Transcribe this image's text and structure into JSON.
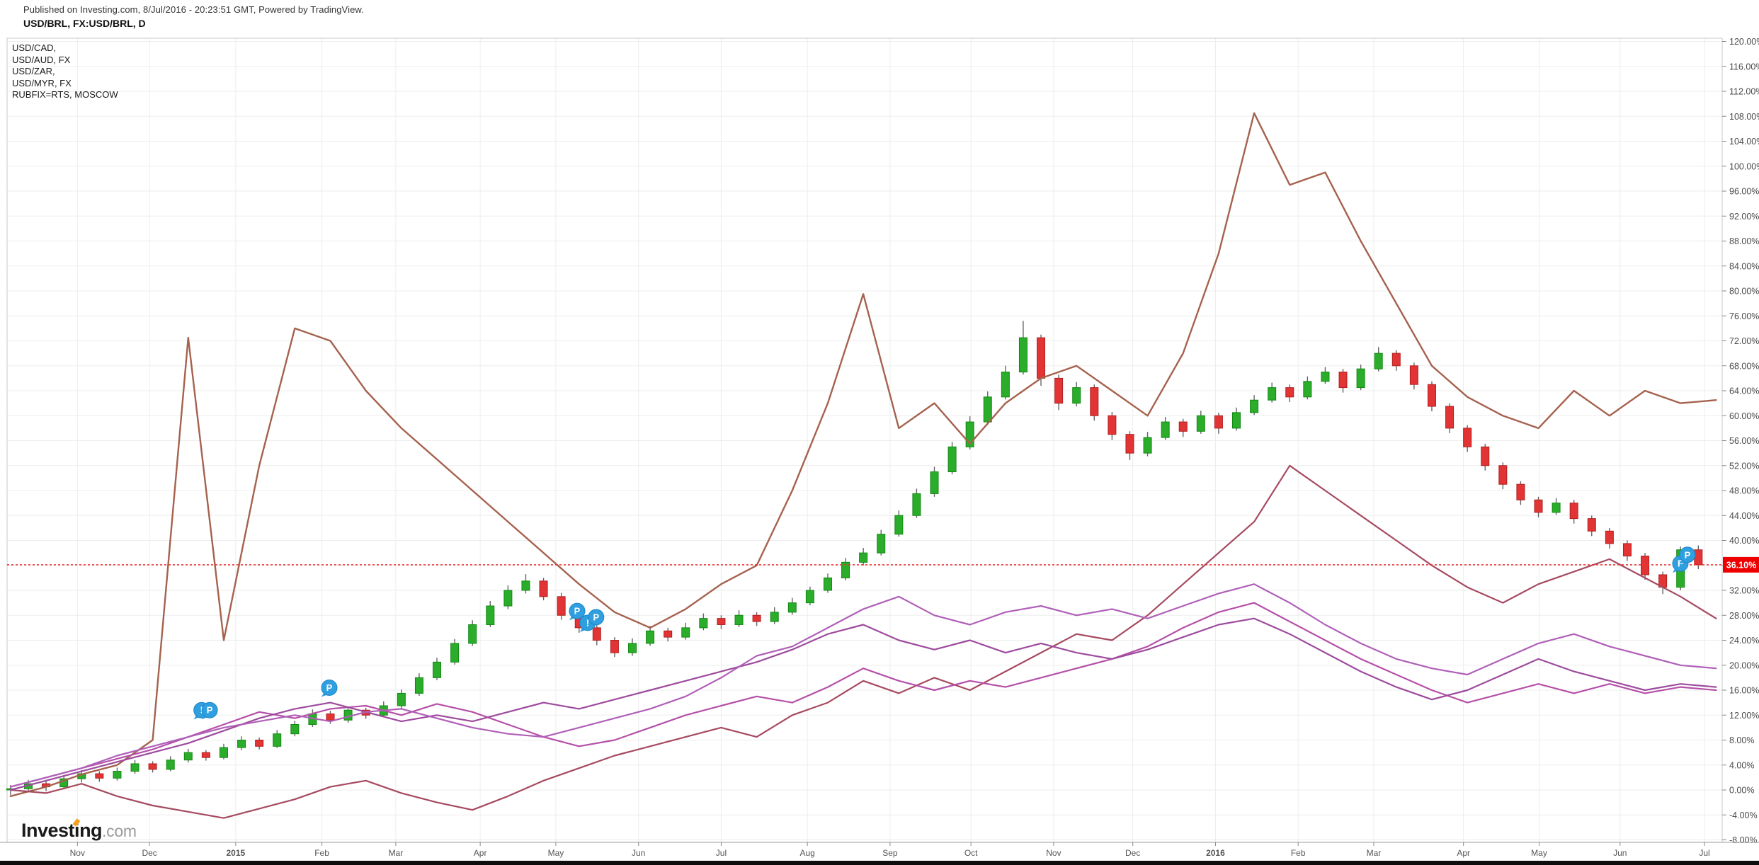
{
  "header": {
    "published_line": "Published on Investing.com, 8/Jul/2016 - 20:23:51 GMT, Powered by TradingView.",
    "symbol_line": "USD/BRL, FX:USD/BRL, D"
  },
  "legend": {
    "lines": [
      "USD/CAD,",
      "USD/AUD, FX",
      "USD/ZAR,",
      "USD/MYR, FX",
      "RUBFIX=RTS, MOSCOW"
    ]
  },
  "logo": {
    "brand_a": "Invest",
    "brand_i": "i",
    "brand_b": "ng",
    "tld": ".com"
  },
  "chart_data": {
    "type": "candlestick+lines",
    "title": "USD/BRL, FX:USD/BRL, D",
    "grid": true,
    "y_axis": {
      "unit": "%",
      "max": 120,
      "min": -8,
      "tick_step": 4,
      "tick_labels": [
        "120.00%",
        "116.00%",
        "112.00%",
        "108.00%",
        "104.00%",
        "100.00%",
        "96.00%",
        "92.00%",
        "88.00%",
        "84.00%",
        "80.00%",
        "76.00%",
        "72.00%",
        "68.00%",
        "64.00%",
        "60.00%",
        "56.00%",
        "52.00%",
        "48.00%",
        "44.00%",
        "40.00%",
        "36.00%",
        "32.00%",
        "28.00%",
        "24.00%",
        "20.00%",
        "16.00%",
        "12.00%",
        "8.00%",
        "4.00%",
        "0.00%",
        "-4.00%",
        "-8.00%"
      ]
    },
    "x_axis": {
      "ticks": [
        {
          "label": "Nov",
          "f": 0.044,
          "bold": false
        },
        {
          "label": "Dec",
          "f": 0.085,
          "bold": false
        },
        {
          "label": "2015",
          "f": 0.134,
          "bold": true
        },
        {
          "label": "Feb",
          "f": 0.183,
          "bold": false
        },
        {
          "label": "Mar",
          "f": 0.225,
          "bold": false
        },
        {
          "label": "Apr",
          "f": 0.273,
          "bold": false
        },
        {
          "label": "May",
          "f": 0.316,
          "bold": false
        },
        {
          "label": "Jun",
          "f": 0.363,
          "bold": false
        },
        {
          "label": "Jul",
          "f": 0.41,
          "bold": false
        },
        {
          "label": "Aug",
          "f": 0.459,
          "bold": false
        },
        {
          "label": "Sep",
          "f": 0.506,
          "bold": false
        },
        {
          "label": "Oct",
          "f": 0.552,
          "bold": false
        },
        {
          "label": "Nov",
          "f": 0.599,
          "bold": false
        },
        {
          "label": "Dec",
          "f": 0.644,
          "bold": false
        },
        {
          "label": "2016",
          "f": 0.691,
          "bold": true
        },
        {
          "label": "Feb",
          "f": 0.738,
          "bold": false
        },
        {
          "label": "Mar",
          "f": 0.781,
          "bold": false
        },
        {
          "label": "Apr",
          "f": 0.832,
          "bold": false
        },
        {
          "label": "May",
          "f": 0.875,
          "bold": false
        },
        {
          "label": "Jun",
          "f": 0.921,
          "bold": false
        },
        {
          "label": "Jul",
          "f": 0.969,
          "bold": false
        }
      ]
    },
    "last_price": {
      "value": 36.1,
      "label": "36.10%",
      "line_color": "#f23030",
      "box_color": "#ef0000",
      "text_color": "#ffffff"
    },
    "candles": {
      "name": "USD/BRL",
      "up_color": "#2bad2b",
      "up_border": "#118a11",
      "down_color": "#e23434",
      "down_border": "#b02020",
      "wick_color": "#666666",
      "f0": 0.006,
      "f_step": 0.0101,
      "ohlc": [
        [
          0,
          0.8,
          -0.8,
          0.2
        ],
        [
          0.2,
          1.6,
          -0.3,
          1.0
        ],
        [
          1.0,
          1.5,
          -0.2,
          0.5
        ],
        [
          0.5,
          2.4,
          0.1,
          1.8
        ],
        [
          1.8,
          3.2,
          1.2,
          2.6
        ],
        [
          2.6,
          3.0,
          1.3,
          1.9
        ],
        [
          1.9,
          3.6,
          1.5,
          3.0
        ],
        [
          3.0,
          4.8,
          2.6,
          4.2
        ],
        [
          4.2,
          4.6,
          2.8,
          3.3
        ],
        [
          3.3,
          5.4,
          3.0,
          4.8
        ],
        [
          4.8,
          6.6,
          4.4,
          6.0
        ],
        [
          6.0,
          6.4,
          4.7,
          5.2
        ],
        [
          5.2,
          7.4,
          4.9,
          6.8
        ],
        [
          6.8,
          8.6,
          6.4,
          8.0
        ],
        [
          8.0,
          8.4,
          6.5,
          7.0
        ],
        [
          7.0,
          9.6,
          6.7,
          9.0
        ],
        [
          9.0,
          11.1,
          8.6,
          10.5
        ],
        [
          10.5,
          12.9,
          10.1,
          12.2
        ],
        [
          12.2,
          12.7,
          10.6,
          11.2
        ],
        [
          11.2,
          13.4,
          10.8,
          12.8
        ],
        [
          12.8,
          13.2,
          11.4,
          12.0
        ],
        [
          12.0,
          14.2,
          11.7,
          13.5
        ],
        [
          13.5,
          16.1,
          13.1,
          15.5
        ],
        [
          15.5,
          18.7,
          15.1,
          18.0
        ],
        [
          18.0,
          21.2,
          17.6,
          20.5
        ],
        [
          20.5,
          24.2,
          20.1,
          23.5
        ],
        [
          23.5,
          27.2,
          23.1,
          26.5
        ],
        [
          26.5,
          30.3,
          26.1,
          29.5
        ],
        [
          29.5,
          32.8,
          29.0,
          32.0
        ],
        [
          32.0,
          34.6,
          31.5,
          33.5
        ],
        [
          33.5,
          34.0,
          30.4,
          31.0
        ],
        [
          31.0,
          31.6,
          27.3,
          28.0
        ],
        [
          28.0,
          28.6,
          25.2,
          26.0
        ],
        [
          26.0,
          26.6,
          23.2,
          24.0
        ],
        [
          24.0,
          24.5,
          21.3,
          22.0
        ],
        [
          22.0,
          24.3,
          21.5,
          23.5
        ],
        [
          23.5,
          26.3,
          23.1,
          25.5
        ],
        [
          25.5,
          26.0,
          23.8,
          24.5
        ],
        [
          24.5,
          26.8,
          24.1,
          26.0
        ],
        [
          26.0,
          28.3,
          25.6,
          27.5
        ],
        [
          27.5,
          28.0,
          25.8,
          26.5
        ],
        [
          26.5,
          28.8,
          26.1,
          28.0
        ],
        [
          28.0,
          28.5,
          26.3,
          27.0
        ],
        [
          27.0,
          29.3,
          26.6,
          28.5
        ],
        [
          28.5,
          30.8,
          28.1,
          30.0
        ],
        [
          30.0,
          32.6,
          29.6,
          32.0
        ],
        [
          32.0,
          34.7,
          31.6,
          34.0
        ],
        [
          34.0,
          37.2,
          33.6,
          36.5
        ],
        [
          36.5,
          38.8,
          36.0,
          38.0
        ],
        [
          38.0,
          41.7,
          37.6,
          41.0
        ],
        [
          41.0,
          44.8,
          40.6,
          44.0
        ],
        [
          44.0,
          48.3,
          43.6,
          47.5
        ],
        [
          47.5,
          51.8,
          47.0,
          51.0
        ],
        [
          51.0,
          55.8,
          50.6,
          55.0
        ],
        [
          55.0,
          59.9,
          54.6,
          59.0
        ],
        [
          59.0,
          63.9,
          58.5,
          63.0
        ],
        [
          63.0,
          68.0,
          62.6,
          67.0
        ],
        [
          67.0,
          75.2,
          66.6,
          72.5
        ],
        [
          72.5,
          73.0,
          64.8,
          66.0
        ],
        [
          66.0,
          66.6,
          60.9,
          62.0
        ],
        [
          62.0,
          65.4,
          61.5,
          64.5
        ],
        [
          64.5,
          65.0,
          59.2,
          60.0
        ],
        [
          60.0,
          60.6,
          56.1,
          57.0
        ],
        [
          57.0,
          57.5,
          52.9,
          54.0
        ],
        [
          54.0,
          57.4,
          53.5,
          56.5
        ],
        [
          56.5,
          59.8,
          56.1,
          59.0
        ],
        [
          59.0,
          59.5,
          56.6,
          57.5
        ],
        [
          57.5,
          60.8,
          57.1,
          60.0
        ],
        [
          60.0,
          60.5,
          57.1,
          58.0
        ],
        [
          58.0,
          61.3,
          57.6,
          60.5
        ],
        [
          60.5,
          63.3,
          60.1,
          62.5
        ],
        [
          62.5,
          65.3,
          62.1,
          64.5
        ],
        [
          64.5,
          65.0,
          62.2,
          63.0
        ],
        [
          63.0,
          66.3,
          62.6,
          65.5
        ],
        [
          65.5,
          67.8,
          65.1,
          67.0
        ],
        [
          67.0,
          67.5,
          63.7,
          64.5
        ],
        [
          64.5,
          68.2,
          64.1,
          67.5
        ],
        [
          67.5,
          71.0,
          67.1,
          70.0
        ],
        [
          70.0,
          70.5,
          67.2,
          68.0
        ],
        [
          68.0,
          68.5,
          64.2,
          65.0
        ],
        [
          65.0,
          65.5,
          60.7,
          61.5
        ],
        [
          61.5,
          62.0,
          57.2,
          58.0
        ],
        [
          58.0,
          58.5,
          54.2,
          55.0
        ],
        [
          55.0,
          55.5,
          51.2,
          52.0
        ],
        [
          52.0,
          52.5,
          48.2,
          49.0
        ],
        [
          49.0,
          49.5,
          45.7,
          46.5
        ],
        [
          46.5,
          47.0,
          43.7,
          44.5
        ],
        [
          44.5,
          46.8,
          44.1,
          46.0
        ],
        [
          46.0,
          46.5,
          42.7,
          43.5
        ],
        [
          43.5,
          44.0,
          40.7,
          41.5
        ],
        [
          41.5,
          42.0,
          38.7,
          39.5
        ],
        [
          39.5,
          40.0,
          36.7,
          37.5
        ],
        [
          37.5,
          38.0,
          33.7,
          34.5
        ],
        [
          34.5,
          35.0,
          31.4,
          32.5
        ],
        [
          32.5,
          39.0,
          32.0,
          38.5
        ],
        [
          38.5,
          39.2,
          35.4,
          36.1
        ]
      ]
    },
    "lines": [
      {
        "name": "RUBFIX=RTS",
        "color": "#a5624e",
        "width": 2.4,
        "f0": 0.006,
        "f_step": 0.0202,
        "values": [
          -1,
          0.5,
          2.5,
          4,
          8,
          72.5,
          24,
          52,
          74,
          72,
          64,
          58,
          53,
          48,
          43,
          38,
          33,
          28.5,
          26,
          29,
          33,
          36,
          48,
          62,
          79.5,
          58,
          62,
          55.5,
          62,
          66,
          68,
          64,
          60,
          70,
          86,
          108.5,
          97,
          99,
          88,
          78,
          68,
          63,
          60,
          58,
          64,
          60,
          64,
          62,
          62.5
        ]
      },
      {
        "name": "USD/ZAR",
        "color": "#a64a60",
        "width": 2.2,
        "f0": 0.006,
        "f_step": 0.0202,
        "values": [
          0,
          -0.5,
          1,
          -1,
          -2.5,
          -3.5,
          -4.5,
          -3,
          -1.5,
          0.5,
          1.5,
          -0.5,
          -2,
          -3.2,
          -1,
          1.5,
          3.5,
          5.5,
          7,
          8.5,
          10,
          8.5,
          12,
          14,
          17.5,
          15.5,
          18,
          16,
          19,
          22,
          25,
          24,
          28,
          33,
          38,
          43,
          52,
          48,
          44,
          40,
          36,
          32.5,
          30,
          33,
          35,
          37,
          34,
          31,
          27.5
        ]
      },
      {
        "name": "USD/CAD",
        "color": "#b550a8",
        "width": 2.2,
        "f0": 0.006,
        "f_step": 0.0202,
        "values": [
          0.5,
          2,
          3.5,
          5,
          6.5,
          8.5,
          10.5,
          12.5,
          11.5,
          13,
          13.5,
          12,
          13.8,
          12.5,
          10.5,
          8.5,
          7,
          8,
          10,
          12,
          13.5,
          15,
          14,
          16.5,
          19.5,
          17.5,
          16,
          17.5,
          16.5,
          18,
          19.5,
          21,
          23,
          26,
          28.5,
          30,
          27,
          24,
          21,
          18.5,
          16,
          14,
          15.5,
          17,
          15.5,
          17,
          15.5,
          16.5,
          16
        ]
      },
      {
        "name": "USD/AUD",
        "color": "#9d4b9d",
        "width": 2.2,
        "f0": 0.006,
        "f_step": 0.0202,
        "values": [
          0,
          1.5,
          3,
          4.5,
          6,
          7.5,
          9.5,
          11.5,
          13,
          14,
          12.5,
          11,
          12,
          11,
          12.5,
          14,
          13,
          14.5,
          16,
          17.5,
          19,
          20.5,
          22.5,
          25,
          26.5,
          24,
          22.5,
          24,
          22,
          23.5,
          22,
          21,
          22.5,
          24.5,
          26.5,
          27.5,
          25,
          22,
          19,
          16.5,
          14.5,
          16,
          18.5,
          21,
          19,
          17.5,
          16,
          17,
          16.5
        ]
      },
      {
        "name": "USD/MYR",
        "color": "#b060b8",
        "width": 2.2,
        "f0": 0.006,
        "f_step": 0.0202,
        "values": [
          0.5,
          2,
          3.5,
          5.5,
          7,
          8.5,
          10,
          11,
          12,
          11,
          12.5,
          13,
          11.5,
          10,
          9,
          8.5,
          10,
          11.5,
          13,
          15,
          18,
          21.5,
          23,
          26,
          29,
          31,
          28,
          26.5,
          28.5,
          29.5,
          28,
          29,
          27.5,
          29.5,
          31.5,
          33,
          30,
          26.5,
          23.5,
          21,
          19.5,
          18.5,
          21,
          23.5,
          25,
          23,
          21.5,
          20,
          19.5
        ]
      }
    ],
    "event_markers": {
      "color": "#2f9fe0",
      "border": "#1d86c8",
      "text_color": "#ffffff",
      "items": [
        {
          "f": 0.1146,
          "value": 12.8,
          "label": "!"
        },
        {
          "f": 0.1192,
          "value": 12.8,
          "label": "P"
        },
        {
          "f": 0.1872,
          "value": 16.4,
          "label": "P"
        },
        {
          "f": 0.3281,
          "value": 28.7,
          "label": "P"
        },
        {
          "f": 0.3341,
          "value": 26.8,
          "label": "!"
        },
        {
          "f": 0.3389,
          "value": 27.7,
          "label": "P"
        },
        {
          "f": 0.9553,
          "value": 36.3,
          "label": "F"
        },
        {
          "f": 0.9593,
          "value": 37.7,
          "label": "P"
        }
      ]
    }
  }
}
